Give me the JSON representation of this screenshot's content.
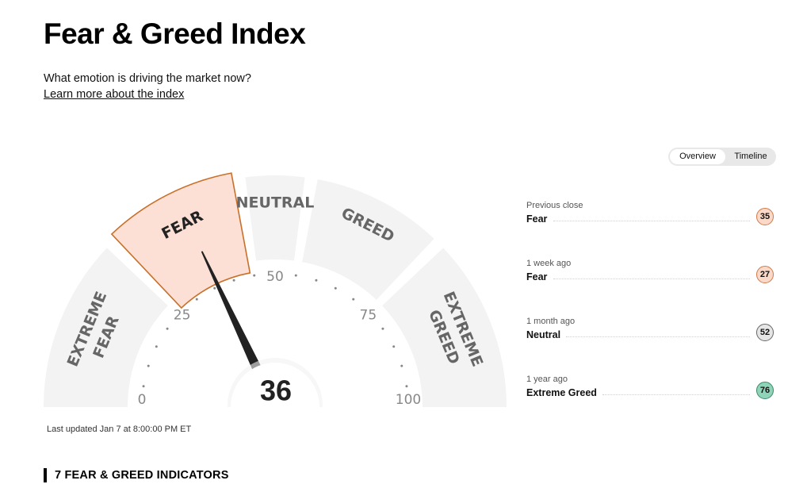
{
  "header": {
    "title": "Fear & Greed Index",
    "subtitle": "What emotion is driving the market now?",
    "learn_more_label": "Learn more about the index"
  },
  "gauge": {
    "value": 36,
    "min": 0,
    "max": 100,
    "tick_labels": [
      "0",
      "25",
      "50",
      "75",
      "100"
    ],
    "active_zone": "FEAR",
    "zones": [
      {
        "label": "EXTREME FEAR",
        "from": 0,
        "to": 25
      },
      {
        "label": "FEAR",
        "from": 25,
        "to": 45
      },
      {
        "label": "NEUTRAL",
        "from": 45,
        "to": 55
      },
      {
        "label": "GREED",
        "from": 55,
        "to": 75
      },
      {
        "label": "EXTREME GREED",
        "from": 75,
        "to": 100
      }
    ]
  },
  "last_updated": "Last updated Jan 7 at 8:00:00 PM ET",
  "view_toggle": {
    "options": [
      "Overview",
      "Timeline"
    ],
    "selected": "Overview"
  },
  "history": [
    {
      "when": "Previous close",
      "rating": "Fear",
      "value": "35",
      "color": "#fbd9c9"
    },
    {
      "when": "1 week ago",
      "rating": "Fear",
      "value": "27",
      "color": "#fbd9c9"
    },
    {
      "when": "1 month ago",
      "rating": "Neutral",
      "value": "52",
      "color": "#e6e6e6"
    },
    {
      "when": "1 year ago",
      "rating": "Extreme Greed",
      "value": "76",
      "color": "#8fd4b8"
    }
  ],
  "colors": {
    "zone_fill": "#f3f3f3",
    "active_fill": "#fde0d5",
    "active_stroke": "#c8702a",
    "needle": "#222222",
    "zone_label": "#666666",
    "tick_label": "#888888"
  },
  "indicators_heading": "7 FEAR & GREED INDICATORS"
}
